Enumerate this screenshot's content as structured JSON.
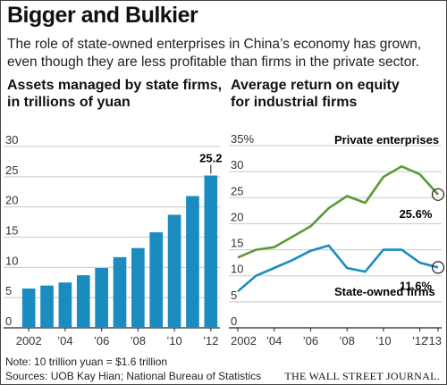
{
  "title": "Bigger and Bulkier",
  "subtitle": "The role of state-owned enterprises in China’s economy has grown, even though they are less profitable than firms in the private sector.",
  "colors": {
    "bar": "#1a8cbf",
    "private": "#5b9a35",
    "state": "#1a8cbf",
    "grid": "#c8c8c8"
  },
  "chart_data": [
    {
      "type": "bar",
      "title": "Assets managed by state firms, in trillions of yuan",
      "title_line1": "Assets managed by state firms,",
      "title_line2": "in trillions of yuan",
      "categories": [
        2002,
        2003,
        2004,
        2005,
        2006,
        2007,
        2008,
        2009,
        2010,
        2011,
        2012
      ],
      "values": [
        6.5,
        7.0,
        7.5,
        8.7,
        9.9,
        11.7,
        13.2,
        15.8,
        18.7,
        21.8,
        25.2
      ],
      "ylim": [
        0,
        30
      ],
      "yticks": [
        0,
        5,
        10,
        15,
        20,
        25,
        30
      ],
      "xticks": [
        "2002",
        "’04",
        "’06",
        "’08",
        "’10",
        "’12"
      ],
      "xtick_years": [
        2002,
        2004,
        2006,
        2008,
        2010,
        2012
      ],
      "annotation": "25.2",
      "grid": true
    },
    {
      "type": "line",
      "title": "Average return on equity for industrial firms",
      "title_line1": "Average return on equity",
      "title_line2": "for industrial firms",
      "x": [
        2002,
        2003,
        2004,
        2005,
        2006,
        2007,
        2008,
        2009,
        2010,
        2011,
        2012,
        2013
      ],
      "series": [
        {
          "name": "Private enterprises",
          "values": [
            13.5,
            15.0,
            15.5,
            17.5,
            19.5,
            23.0,
            25.3,
            24.0,
            29.0,
            31.0,
            29.5,
            25.6
          ],
          "end_label": "25.6%"
        },
        {
          "name": "State-owned firms",
          "values": [
            7.0,
            10.0,
            11.5,
            13.0,
            14.8,
            15.8,
            11.5,
            10.8,
            15.0,
            15.0,
            12.5,
            11.6
          ],
          "end_label": "11.6%"
        }
      ],
      "ylim": [
        0,
        35
      ],
      "yticks": [
        0,
        5,
        10,
        15,
        20,
        25,
        30,
        35
      ],
      "ytick_labels": [
        "0",
        "5",
        "10",
        "15",
        "20",
        "25",
        "30",
        "35%"
      ],
      "xticks": [
        "2002",
        "’04",
        "’06",
        "’08",
        "’10",
        "’12",
        "’13"
      ],
      "xtick_years": [
        2002,
        2004,
        2006,
        2008,
        2010,
        2012,
        2013
      ],
      "grid": true
    }
  ],
  "note": "Note: 10 trillion yuan = $1.6 trillion",
  "sources": "Sources: UOB Kay Hian; National Bureau of Statistics",
  "brand": "THE WALL STREET JOURNAL."
}
